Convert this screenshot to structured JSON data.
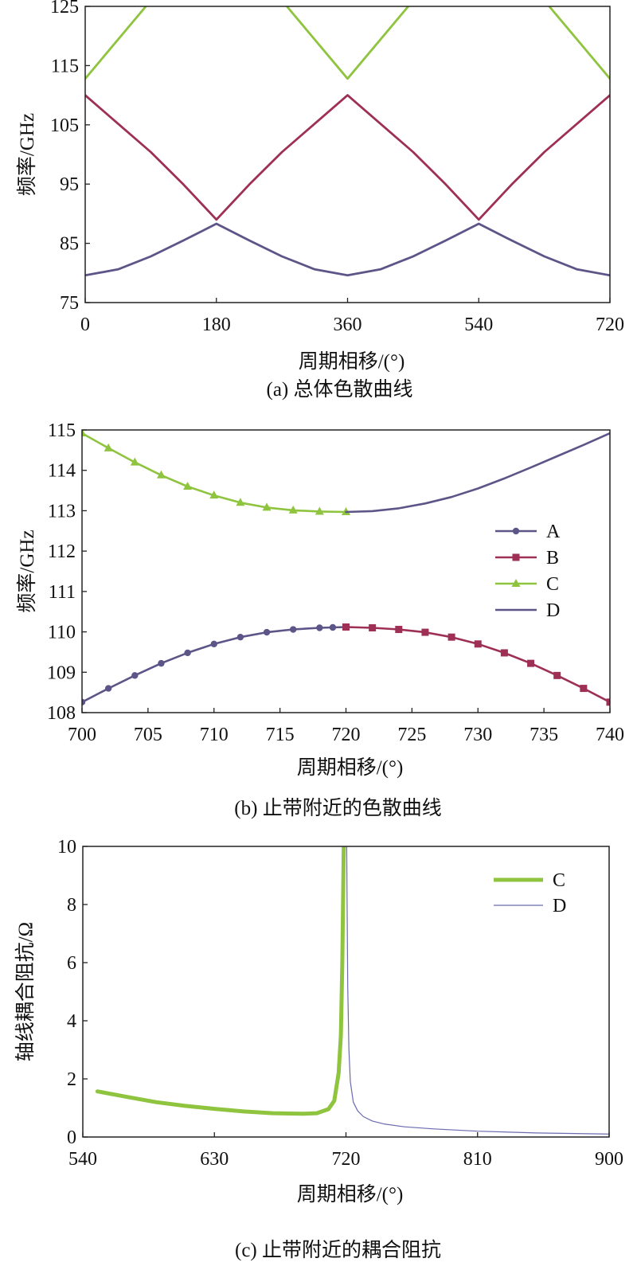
{
  "chart_data": [
    {
      "type": "line",
      "caption": "(a) 总体色散曲线",
      "xlabel": "周期相移/(°)",
      "ylabel": "频率/GHz",
      "xlim": [
        0,
        720
      ],
      "ylim": [
        75,
        125
      ],
      "xticks": [
        0,
        180,
        360,
        540,
        720
      ],
      "yticks": [
        75,
        85,
        95,
        105,
        115,
        125
      ],
      "grid": false,
      "series": [
        {
          "color": "#8fc43f",
          "x": [
            0,
            90,
            270,
            360,
            450,
            630,
            720
          ],
          "y": [
            112.8,
            126,
            126,
            112.8,
            126,
            126,
            112.8
          ]
        },
        {
          "color": "#9e2f55",
          "x": [
            0,
            45,
            90,
            135,
            180,
            225,
            270,
            315,
            360,
            405,
            450,
            495,
            540,
            585,
            630,
            675,
            720
          ],
          "y": [
            110,
            105.2,
            100.4,
            94.9,
            89,
            94.9,
            100.4,
            105.2,
            110,
            105.2,
            100.4,
            94.9,
            89,
            94.9,
            100.4,
            105.2,
            110
          ]
        },
        {
          "color": "#5c5588",
          "x": [
            0,
            45,
            90,
            135,
            180,
            225,
            270,
            315,
            360,
            405,
            450,
            495,
            540,
            585,
            630,
            675,
            720
          ],
          "y": [
            79.6,
            80.6,
            82.8,
            85.5,
            88.3,
            85.5,
            82.8,
            80.6,
            79.6,
            80.6,
            82.8,
            85.5,
            88.3,
            85.5,
            82.8,
            80.6,
            79.6
          ]
        }
      ]
    },
    {
      "type": "line",
      "caption": "(b) 止带附近的色散曲线",
      "xlabel": "周期相移/(°)",
      "ylabel": "频率/GHz",
      "xlim": [
        700,
        740
      ],
      "ylim": [
        108,
        115
      ],
      "xticks": [
        700,
        705,
        710,
        715,
        720,
        725,
        730,
        735,
        740
      ],
      "yticks": [
        108,
        109,
        110,
        111,
        112,
        113,
        114,
        115
      ],
      "grid": false,
      "legend": "right",
      "series": [
        {
          "name": "A",
          "color": "#5c5588",
          "marker": "circle",
          "x": [
            700,
            702,
            704,
            706,
            708,
            710,
            712,
            714,
            716,
            718,
            719,
            720
          ],
          "y": [
            108.26,
            108.6,
            108.92,
            109.22,
            109.48,
            109.7,
            109.87,
            109.99,
            110.06,
            110.1,
            110.11,
            110.12
          ]
        },
        {
          "name": "B",
          "color": "#9e2f55",
          "marker": "square",
          "x": [
            720,
            722,
            724,
            726,
            728,
            730,
            732,
            734,
            736,
            738,
            740
          ],
          "y": [
            110.12,
            110.1,
            110.06,
            109.99,
            109.87,
            109.7,
            109.48,
            109.22,
            108.92,
            108.6,
            108.26
          ]
        },
        {
          "name": "C",
          "color": "#8fc43f",
          "marker": "triangle",
          "x": [
            700,
            702,
            704,
            706,
            708,
            710,
            712,
            714,
            716,
            718,
            720
          ],
          "y": [
            114.92,
            114.55,
            114.2,
            113.88,
            113.6,
            113.38,
            113.2,
            113.08,
            113.01,
            112.98,
            112.97
          ]
        },
        {
          "name": "D",
          "color": "#5c5588",
          "marker": "none",
          "x": [
            720,
            722,
            724,
            726,
            728,
            730,
            732,
            734,
            736,
            738,
            740
          ],
          "y": [
            112.97,
            112.99,
            113.06,
            113.18,
            113.34,
            113.55,
            113.8,
            114.07,
            114.35,
            114.63,
            114.92
          ]
        }
      ]
    },
    {
      "type": "line",
      "caption": "(c) 止带附近的耦合阻抗",
      "xlabel": "周期相移/(°)",
      "ylabel": "轴线耦合阻抗/Ω",
      "xlim": [
        540,
        900
      ],
      "ylim": [
        0,
        10
      ],
      "xticks": [
        540,
        630,
        720,
        810,
        900
      ],
      "yticks": [
        0,
        2,
        4,
        6,
        8,
        10
      ],
      "grid": false,
      "legend": "top-right",
      "series": [
        {
          "name": "C",
          "color": "#8fc43f",
          "x": [
            550,
            570,
            590,
            610,
            630,
            650,
            670,
            690,
            700,
            708,
            712,
            715,
            716.5,
            717.5,
            718.5
          ],
          "y": [
            1.57,
            1.38,
            1.2,
            1.07,
            0.97,
            0.88,
            0.82,
            0.8,
            0.82,
            0.96,
            1.25,
            2.2,
            3.5,
            6,
            10
          ]
        },
        {
          "name": "D",
          "color": "#6a6ab0",
          "x": [
            720.5,
            721.2,
            722,
            723,
            725,
            728,
            732,
            738,
            746,
            760,
            780,
            810,
            850,
            900
          ],
          "y": [
            10,
            5.2,
            3,
            1.9,
            1.2,
            0.9,
            0.7,
            0.55,
            0.45,
            0.35,
            0.28,
            0.2,
            0.14,
            0.1
          ]
        }
      ]
    }
  ]
}
